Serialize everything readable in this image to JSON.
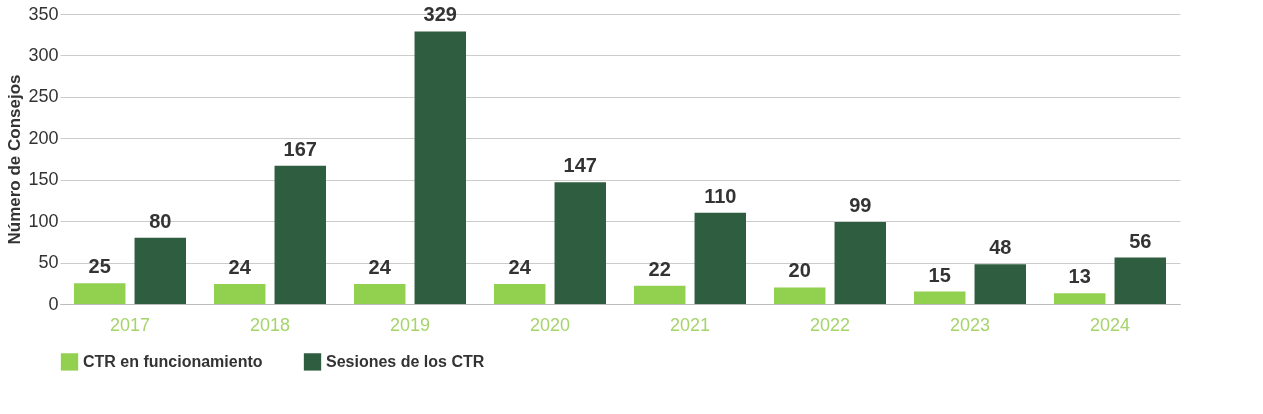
{
  "chart_data": {
    "type": "bar",
    "ylabel": "Número de Consejos",
    "categories": [
      "2017",
      "2018",
      "2019",
      "2020",
      "2021",
      "2022",
      "2023",
      "2024"
    ],
    "series": [
      {
        "name": "CTR en funcionamiento",
        "color": "#92d050",
        "values": [
          25,
          24,
          24,
          24,
          22,
          20,
          15,
          13
        ]
      },
      {
        "name": "Sesiones de los CTR",
        "color": "#2f5d3f",
        "values": [
          80,
          167,
          329,
          147,
          110,
          99,
          48,
          56
        ]
      }
    ],
    "ylim": [
      0,
      350
    ],
    "yticks": [
      0,
      50,
      100,
      150,
      200,
      250,
      300,
      350
    ],
    "grid": "y",
    "legend": "bottom",
    "data_labels": true
  }
}
